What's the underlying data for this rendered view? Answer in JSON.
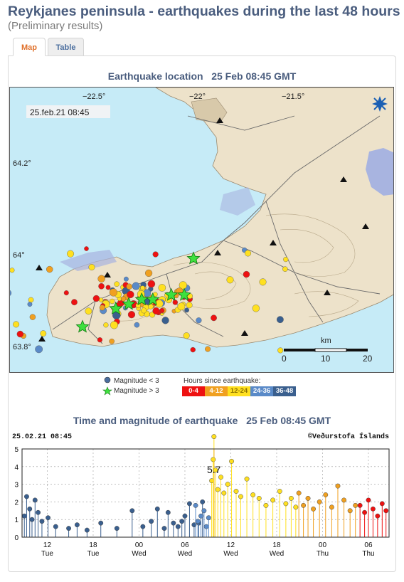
{
  "page": {
    "title": "Reykjanes peninsula - earthquakes during the last 48 hours",
    "subtitle": "(Preliminary results)"
  },
  "tabs": [
    {
      "label": "Map",
      "active": true
    },
    {
      "label": "Table",
      "active": false
    }
  ],
  "map_section": {
    "title": "Earthquake location   25 Feb 08:45 GMT",
    "timestamp_label": "25.feb.21  08:45",
    "lon_labels": [
      "−22.5°",
      "−22°",
      "−21.5°"
    ],
    "lat_labels": [
      "64.2°",
      "64°",
      "63.8°"
    ],
    "scale_unit": "km",
    "scale_ticks": [
      "0",
      "10",
      "20"
    ],
    "colors": {
      "sea": "#c6ebf7",
      "land": "#ede2ca",
      "lake": "#a8b4e0",
      "contour": "#b8a88a"
    }
  },
  "legend": {
    "mag_small": "Magnitude < 3",
    "mag_large": "Magnitude > 3",
    "hours_title": "Hours since earthquake:",
    "hour_bins": [
      {
        "label": "0-4",
        "color": "#ee1111"
      },
      {
        "label": "4-12",
        "color": "#f0a020"
      },
      {
        "label": "12-24",
        "color": "#ffe020"
      },
      {
        "label": "24-36",
        "color": "#5a8ac8"
      },
      {
        "label": "36-48",
        "color": "#3a5f8e"
      }
    ]
  },
  "chart_section": {
    "title": "Time and magnitude of earthquake   25 Feb 08:45 GMT",
    "timestamp": "25.02.21  08:45",
    "credit": "©Veðurstofa Íslands",
    "peak_label": "5.7"
  },
  "chart_data": {
    "type": "scatter",
    "title": "Time and magnitude of earthquake   25 Feb 08:45 GMT",
    "xlabel": "",
    "ylabel": "",
    "ylim": [
      0,
      5
    ],
    "xlim_hours": [
      0,
      48
    ],
    "y_ticks": [
      "0",
      "1",
      "2",
      "3",
      "4",
      "5"
    ],
    "x_ticks": [
      {
        "hour": 3.3,
        "time": "12",
        "day": "Tue"
      },
      {
        "hour": 9.3,
        "time": "18",
        "day": "Tue"
      },
      {
        "hour": 15.3,
        "time": "00",
        "day": "Wed"
      },
      {
        "hour": 21.3,
        "time": "06",
        "day": "Wed"
      },
      {
        "hour": 27.3,
        "time": "12",
        "day": "Wed"
      },
      {
        "hour": 33.3,
        "time": "18",
        "day": "Wed"
      },
      {
        "hour": 39.3,
        "time": "00",
        "day": "Thu"
      },
      {
        "hour": 45.3,
        "time": "06",
        "day": "Thu"
      }
    ],
    "series": [
      {
        "bin": "36-48",
        "color": "#3a5f8e",
        "hours": [
          0.3,
          0.6,
          1.0,
          1.3,
          1.7,
          2.1,
          2.6,
          3.4,
          4.4,
          6.1,
          7.2,
          8.5,
          10.3,
          12.4,
          14.4,
          15.8,
          16.9,
          17.7,
          18.6,
          19.1,
          19.8,
          20.4,
          20.9,
          21.3,
          21.9,
          22.5,
          23.1,
          23.6
        ],
        "mags": [
          1.2,
          2.3,
          1.6,
          1.0,
          2.1,
          1.4,
          0.9,
          1.1,
          0.6,
          0.5,
          0.7,
          0.4,
          0.8,
          0.5,
          1.5,
          0.6,
          0.9,
          1.6,
          0.5,
          1.4,
          0.8,
          0.6,
          0.9,
          1.2,
          1.9,
          0.7,
          0.8,
          2.0
        ]
      },
      {
        "bin": "24-36",
        "color": "#5a8ac8",
        "hours": [
          22.7,
          23.0,
          23.4,
          23.8,
          24.1,
          24.4
        ],
        "mags": [
          1.8,
          0.9,
          1.2,
          1.5,
          0.6,
          1.1
        ]
      },
      {
        "bin": "12-24",
        "color": "#ffe020",
        "hours": [
          24.8,
          25.0,
          25.1,
          25.3,
          25.6,
          26.0,
          26.4,
          26.9,
          27.4,
          28.0,
          28.6,
          29.4,
          30.2,
          31.0,
          31.9,
          32.8,
          33.7,
          34.5,
          35.2,
          35.8
        ],
        "mags": [
          3.2,
          4.4,
          5.7,
          3.8,
          2.7,
          3.4,
          2.5,
          3.0,
          4.3,
          2.6,
          2.3,
          3.3,
          2.4,
          2.2,
          1.8,
          2.1,
          2.6,
          1.9,
          2.2,
          1.7
        ]
      },
      {
        "bin": "4-12",
        "color": "#f0a020",
        "hours": [
          36.2,
          36.8,
          37.4,
          38.1,
          38.9,
          39.7,
          40.5,
          41.3,
          42.1,
          42.9,
          43.6
        ],
        "mags": [
          2.5,
          1.8,
          2.2,
          1.6,
          2.0,
          2.4,
          1.7,
          2.9,
          2.1,
          1.5,
          1.8
        ]
      },
      {
        "bin": "0-4",
        "color": "#ee1111",
        "hours": [
          44.2,
          44.8,
          45.3,
          45.9,
          46.5,
          47.1,
          47.6
        ],
        "mags": [
          1.8,
          1.4,
          2.1,
          1.6,
          1.2,
          1.9,
          1.5
        ]
      }
    ],
    "map_stars": [
      {
        "lon": -22.42,
        "lat": 63.88,
        "bin": "12-24"
      },
      {
        "lon": -22.35,
        "lat": 63.89,
        "bin": "12-24"
      },
      {
        "lon": -22.28,
        "lat": 63.9,
        "bin": "12-24"
      },
      {
        "lon": -22.22,
        "lat": 63.9,
        "bin": "12-24"
      },
      {
        "lon": -22.12,
        "lat": 63.91,
        "bin": "12-24"
      },
      {
        "lon": -22.05,
        "lat": 63.91,
        "bin": "12-24"
      },
      {
        "lon": -22.0,
        "lat": 63.99,
        "bin": "12-24"
      },
      {
        "lon": -22.6,
        "lat": 63.84,
        "bin": "12-24"
      }
    ],
    "map_cluster_center": {
      "lon": -22.25,
      "lat": 63.9
    }
  }
}
